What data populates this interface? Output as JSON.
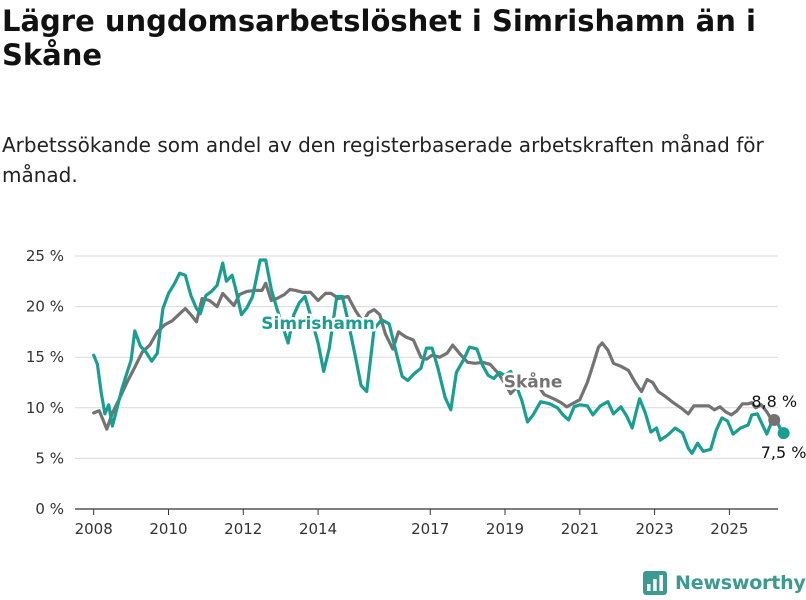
{
  "title": "Lägre ungdomsarbetslöshet i Simrishamn än i Skåne",
  "subtitle": "Arbetssökande som andel av den registerbaserade arbetskraften månad för månad.",
  "logo": {
    "text": "Newsworthy",
    "icon": "bar-chart-logo-icon",
    "color": "#3d9a8f"
  },
  "chart_data": {
    "type": "line",
    "xlabel": "",
    "ylabel": "",
    "x_ticks": [
      "2008",
      "2010",
      "2012",
      "2014",
      "2017",
      "2019",
      "2021",
      "2023",
      "2025"
    ],
    "y_ticks": [
      "0 %",
      "5 %",
      "10 %",
      "15 %",
      "20 %",
      "25 %"
    ],
    "xlim": [
      2007.5,
      2026.3
    ],
    "ylim": [
      0,
      25
    ],
    "grid": "horizontal",
    "legend": "inline labels on lines",
    "series": [
      {
        "name": "Skåne",
        "color": "#737373",
        "end_label": "8,8 %",
        "points": [
          [
            2008.0,
            9.5
          ],
          [
            2008.15,
            9.7
          ],
          [
            2008.35,
            7.9
          ],
          [
            2008.5,
            9.5
          ],
          [
            2008.7,
            11.0
          ],
          [
            2008.9,
            12.6
          ],
          [
            2009.1,
            14.0
          ],
          [
            2009.3,
            15.5
          ],
          [
            2009.5,
            16.2
          ],
          [
            2009.7,
            17.5
          ],
          [
            2009.9,
            18.2
          ],
          [
            2010.1,
            18.6
          ],
          [
            2010.3,
            19.3
          ],
          [
            2010.45,
            19.8
          ],
          [
            2010.6,
            19.2
          ],
          [
            2010.75,
            18.5
          ],
          [
            2010.9,
            20.8
          ],
          [
            2011.1,
            20.6
          ],
          [
            2011.3,
            20.0
          ],
          [
            2011.45,
            21.3
          ],
          [
            2011.6,
            20.7
          ],
          [
            2011.75,
            20.1
          ],
          [
            2011.9,
            21.2
          ],
          [
            2012.1,
            21.5
          ],
          [
            2012.3,
            21.6
          ],
          [
            2012.5,
            21.6
          ],
          [
            2012.6,
            22.3
          ],
          [
            2012.75,
            20.6
          ],
          [
            2012.9,
            20.8
          ],
          [
            2013.1,
            21.2
          ],
          [
            2013.25,
            21.7
          ],
          [
            2013.4,
            21.6
          ],
          [
            2013.6,
            21.4
          ],
          [
            2013.8,
            21.4
          ],
          [
            2014.0,
            20.6
          ],
          [
            2014.2,
            21.3
          ],
          [
            2014.35,
            21.3
          ],
          [
            2014.55,
            20.8
          ],
          [
            2014.8,
            21.0
          ],
          [
            2015.0,
            19.6
          ],
          [
            2015.2,
            18.5
          ],
          [
            2015.35,
            19.4
          ],
          [
            2015.5,
            19.7
          ],
          [
            2015.65,
            19.2
          ],
          [
            2015.8,
            17.3
          ],
          [
            2016.0,
            15.8
          ],
          [
            2016.15,
            17.5
          ],
          [
            2016.35,
            17.0
          ],
          [
            2016.55,
            16.7
          ],
          [
            2016.75,
            15.0
          ],
          [
            2016.9,
            14.8
          ],
          [
            2017.05,
            15.2
          ],
          [
            2017.25,
            15.0
          ],
          [
            2017.45,
            15.4
          ],
          [
            2017.6,
            16.2
          ],
          [
            2017.8,
            15.3
          ],
          [
            2018.0,
            14.5
          ],
          [
            2018.2,
            14.4
          ],
          [
            2018.4,
            14.5
          ],
          [
            2018.6,
            14.3
          ],
          [
            2018.8,
            13.5
          ],
          [
            2019.0,
            12.4
          ],
          [
            2019.15,
            11.4
          ],
          [
            2019.3,
            12.0
          ],
          [
            2019.45,
            12.6
          ],
          [
            2019.75,
            12.9
          ],
          [
            2020.05,
            11.3
          ],
          [
            2020.35,
            10.8
          ],
          [
            2020.5,
            10.5
          ],
          [
            2020.65,
            10.1
          ],
          [
            2020.8,
            10.4
          ],
          [
            2021.0,
            10.8
          ],
          [
            2021.2,
            12.5
          ],
          [
            2021.35,
            14.2
          ],
          [
            2021.5,
            16.0
          ],
          [
            2021.6,
            16.4
          ],
          [
            2021.75,
            15.7
          ],
          [
            2021.9,
            14.4
          ],
          [
            2022.1,
            14.1
          ],
          [
            2022.3,
            13.7
          ],
          [
            2022.5,
            12.4
          ],
          [
            2022.65,
            11.6
          ],
          [
            2022.8,
            12.8
          ],
          [
            2022.95,
            12.5
          ],
          [
            2023.1,
            11.6
          ],
          [
            2023.3,
            11.1
          ],
          [
            2023.5,
            10.5
          ],
          [
            2023.7,
            10.0
          ],
          [
            2023.9,
            9.4
          ],
          [
            2024.05,
            10.2
          ],
          [
            2024.25,
            10.2
          ],
          [
            2024.45,
            10.2
          ],
          [
            2024.6,
            9.8
          ],
          [
            2024.75,
            10.1
          ],
          [
            2024.9,
            9.6
          ],
          [
            2025.05,
            9.3
          ],
          [
            2025.2,
            9.7
          ],
          [
            2025.35,
            10.4
          ],
          [
            2025.5,
            10.4
          ],
          [
            2025.6,
            10.5
          ],
          [
            2025.7,
            10.0
          ],
          [
            2025.85,
            10.3
          ],
          [
            2026.0,
            9.6
          ],
          [
            2026.1,
            9.0
          ],
          [
            2026.2,
            8.8
          ]
        ]
      },
      {
        "name": "Simrishamn",
        "color": "#1a9e91",
        "end_label": "7,5 %",
        "points": [
          [
            2008.0,
            15.2
          ],
          [
            2008.1,
            14.3
          ],
          [
            2008.2,
            11.5
          ],
          [
            2008.3,
            9.4
          ],
          [
            2008.4,
            10.3
          ],
          [
            2008.5,
            8.2
          ],
          [
            2008.6,
            9.6
          ],
          [
            2008.75,
            11.8
          ],
          [
            2008.9,
            13.6
          ],
          [
            2009.0,
            14.7
          ],
          [
            2009.1,
            17.6
          ],
          [
            2009.25,
            16.1
          ],
          [
            2009.4,
            15.5
          ],
          [
            2009.55,
            14.6
          ],
          [
            2009.7,
            15.4
          ],
          [
            2009.85,
            19.8
          ],
          [
            2010.0,
            21.3
          ],
          [
            2010.15,
            22.2
          ],
          [
            2010.3,
            23.3
          ],
          [
            2010.45,
            23.1
          ],
          [
            2010.6,
            21.1
          ],
          [
            2010.75,
            19.8
          ],
          [
            2010.85,
            19.3
          ],
          [
            2011.0,
            21.1
          ],
          [
            2011.15,
            21.5
          ],
          [
            2011.3,
            22.1
          ],
          [
            2011.45,
            24.3
          ],
          [
            2011.55,
            22.5
          ],
          [
            2011.7,
            23.1
          ],
          [
            2011.8,
            21.7
          ],
          [
            2011.95,
            19.2
          ],
          [
            2012.1,
            19.9
          ],
          [
            2012.25,
            21.0
          ],
          [
            2012.45,
            24.6
          ],
          [
            2012.6,
            24.6
          ],
          [
            2012.75,
            21.7
          ],
          [
            2012.9,
            19.8
          ],
          [
            2013.05,
            18.1
          ],
          [
            2013.2,
            16.4
          ],
          [
            2013.35,
            19.2
          ],
          [
            2013.5,
            20.4
          ],
          [
            2013.65,
            21.0
          ],
          [
            2013.8,
            19.1
          ],
          [
            2014.0,
            16.4
          ],
          [
            2014.15,
            13.6
          ],
          [
            2014.3,
            15.9
          ],
          [
            2014.5,
            21.0
          ],
          [
            2014.65,
            21.0
          ],
          [
            2014.8,
            18.6
          ],
          [
            2015.0,
            15.0
          ],
          [
            2015.15,
            12.2
          ],
          [
            2015.3,
            11.6
          ],
          [
            2015.5,
            17.8
          ],
          [
            2015.7,
            18.7
          ],
          [
            2015.9,
            18.3
          ],
          [
            2016.1,
            15.3
          ],
          [
            2016.25,
            13.1
          ],
          [
            2016.4,
            12.7
          ],
          [
            2016.55,
            13.3
          ],
          [
            2016.75,
            13.9
          ],
          [
            2016.9,
            15.9
          ],
          [
            2017.05,
            15.9
          ],
          [
            2017.2,
            14.0
          ],
          [
            2017.4,
            11.0
          ],
          [
            2017.55,
            9.8
          ],
          [
            2017.7,
            13.5
          ],
          [
            2017.9,
            14.8
          ],
          [
            2018.05,
            16.0
          ],
          [
            2018.25,
            15.8
          ],
          [
            2018.4,
            14.2
          ],
          [
            2018.55,
            13.2
          ],
          [
            2018.7,
            12.9
          ],
          [
            2018.85,
            13.5
          ],
          [
            2019.0,
            13.2
          ],
          [
            2019.15,
            13.6
          ],
          [
            2019.3,
            12.2
          ],
          [
            2019.45,
            10.7
          ],
          [
            2019.6,
            8.6
          ],
          [
            2019.75,
            9.3
          ],
          [
            2019.95,
            10.6
          ],
          [
            2020.2,
            10.4
          ],
          [
            2020.4,
            10.0
          ],
          [
            2020.55,
            9.3
          ],
          [
            2020.7,
            8.8
          ],
          [
            2020.85,
            10.1
          ],
          [
            2021.0,
            10.3
          ],
          [
            2021.2,
            10.2
          ],
          [
            2021.35,
            9.3
          ],
          [
            2021.55,
            10.2
          ],
          [
            2021.75,
            10.6
          ],
          [
            2021.9,
            9.4
          ],
          [
            2022.1,
            10.1
          ],
          [
            2022.25,
            9.2
          ],
          [
            2022.4,
            8.0
          ],
          [
            2022.5,
            9.5
          ],
          [
            2022.6,
            10.9
          ],
          [
            2022.75,
            9.5
          ],
          [
            2022.9,
            7.6
          ],
          [
            2023.05,
            8.0
          ],
          [
            2023.15,
            6.8
          ],
          [
            2023.35,
            7.3
          ],
          [
            2023.55,
            8.0
          ],
          [
            2023.75,
            7.5
          ],
          [
            2023.9,
            6.0
          ],
          [
            2024.0,
            5.5
          ],
          [
            2024.15,
            6.5
          ],
          [
            2024.3,
            5.7
          ],
          [
            2024.5,
            5.9
          ],
          [
            2024.65,
            7.8
          ],
          [
            2024.8,
            9.0
          ],
          [
            2024.95,
            8.7
          ],
          [
            2025.1,
            7.4
          ],
          [
            2025.3,
            8.0
          ],
          [
            2025.5,
            8.3
          ],
          [
            2025.6,
            9.3
          ],
          [
            2025.75,
            9.4
          ],
          [
            2025.9,
            8.2
          ],
          [
            2026.0,
            7.4
          ],
          [
            2026.1,
            8.3
          ],
          [
            2026.15,
            9.2
          ],
          [
            2026.25,
            8.9
          ],
          [
            2026.35,
            8.0
          ],
          [
            2026.45,
            7.5
          ]
        ]
      }
    ]
  }
}
